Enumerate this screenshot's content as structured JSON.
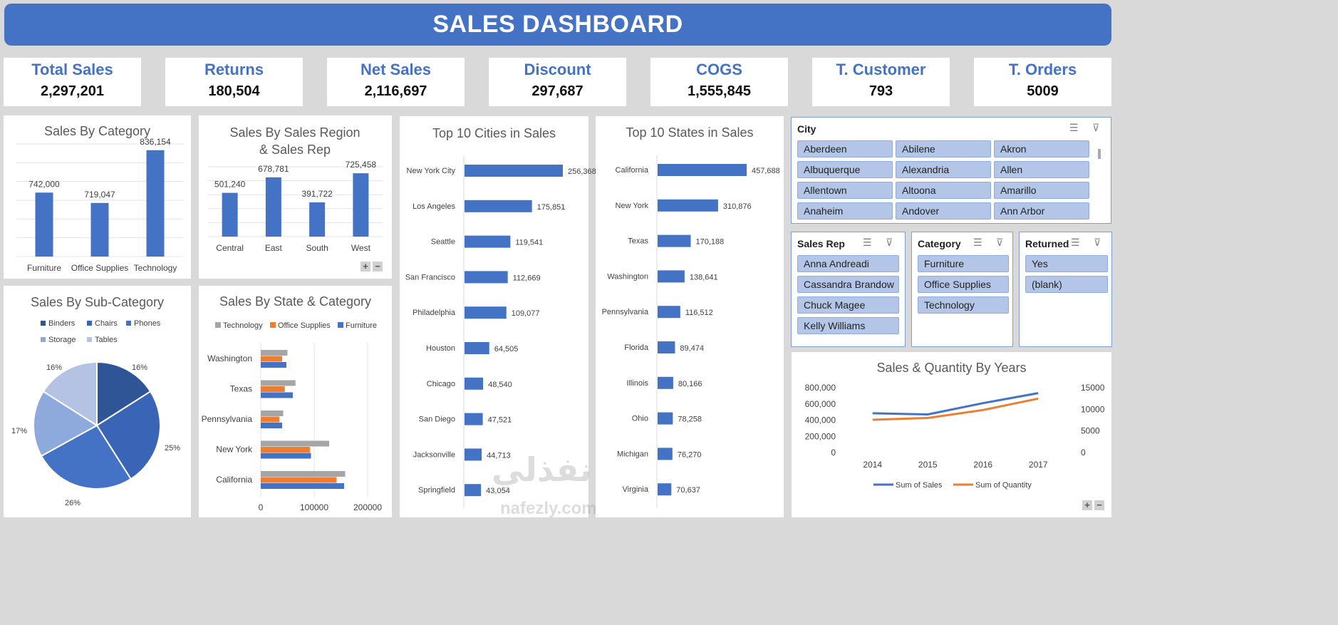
{
  "title": "SALES DASHBOARD",
  "kpis": [
    {
      "label": "Total Sales",
      "value": "2,297,201"
    },
    {
      "label": "Returns",
      "value": "180,504"
    },
    {
      "label": "Net Sales",
      "value": "2,116,697"
    },
    {
      "label": "Discount",
      "value": "297,687"
    },
    {
      "label": "COGS",
      "value": "1,555,845"
    },
    {
      "label": "T. Customer",
      "value": "793"
    },
    {
      "label": "T. Orders",
      "value": "5009"
    }
  ],
  "colors": {
    "primary": "#4472c4",
    "orange": "#ed7d31",
    "gray": "#a5a5a5",
    "slicer_btn": "#b4c6e7"
  },
  "chart_data": [
    {
      "id": "category",
      "type": "bar",
      "title": "Sales By Category",
      "categories": [
        "Furniture",
        "Office Supplies",
        "Technology"
      ],
      "values": [
        742000,
        719047,
        836154
      ],
      "labels": [
        "742,000",
        "719,047",
        "836,154"
      ],
      "ylim": [
        600000,
        850000
      ],
      "grid": true
    },
    {
      "id": "region",
      "type": "bar",
      "title": "Sales By Sales Region & Sales Rep",
      "categories": [
        "Central",
        "East",
        "South",
        "West"
      ],
      "values": [
        501240,
        678781,
        391722,
        725458
      ],
      "labels": [
        "501,240",
        "678,781",
        "391,722",
        "725,458"
      ],
      "grid": true
    },
    {
      "id": "cities",
      "type": "bar",
      "orientation": "horizontal",
      "title": "Top 10 Cities in Sales",
      "categories": [
        "New York City",
        "Los Angeles",
        "Seattle",
        "San Francisco",
        "Philadelphia",
        "Houston",
        "Chicago",
        "San Diego",
        "Jacksonville",
        "Springfield"
      ],
      "values": [
        256368,
        175851,
        119541,
        112669,
        109077,
        64505,
        48540,
        47521,
        44713,
        43054
      ],
      "labels": [
        "256,368",
        "175,851",
        "119,541",
        "112,669",
        "109,077",
        "64,505",
        "48,540",
        "47,521",
        "44,713",
        "43,054"
      ]
    },
    {
      "id": "states",
      "type": "bar",
      "orientation": "horizontal",
      "title": "Top 10 States in Sales",
      "categories": [
        "California",
        "New York",
        "Texas",
        "Washington",
        "Pennsylvania",
        "Florida",
        "Illinois",
        "Ohio",
        "Michigan",
        "Virginia"
      ],
      "values": [
        457688,
        310876,
        170188,
        138641,
        116512,
        89474,
        80166,
        78258,
        76270,
        70637
      ],
      "labels": [
        "457,688",
        "310,876",
        "170,188",
        "138,641",
        "116,512",
        "89,474",
        "80,166",
        "78,258",
        "76,270",
        "70,637"
      ]
    },
    {
      "id": "subcat",
      "type": "pie",
      "title": "Sales By Sub-Category",
      "categories": [
        "Binders",
        "Chairs",
        "Phones",
        "Storage",
        "Tables"
      ],
      "values": [
        16,
        25,
        26,
        17,
        16
      ],
      "labels": [
        "16%",
        "25%",
        "26%",
        "17%",
        "16%"
      ],
      "colors": [
        "#2f5597",
        "#3a64b5",
        "#4472c4",
        "#8ea9db",
        "#b4c2e3"
      ],
      "legend": "top"
    },
    {
      "id": "statecat",
      "type": "bar",
      "orientation": "horizontal",
      "title": "Sales By State & Category",
      "categories": [
        "Washington",
        "Texas",
        "Pennsylvania",
        "New York",
        "California"
      ],
      "series": [
        {
          "name": "Technology",
          "values": [
            50000,
            65000,
            42000,
            128000,
            158000
          ],
          "color": "#a5a5a5"
        },
        {
          "name": "Office Supplies",
          "values": [
            40000,
            45000,
            35000,
            92000,
            142000
          ],
          "color": "#ed7d31"
        },
        {
          "name": "Furniture",
          "values": [
            48000,
            60000,
            40000,
            94000,
            156000
          ],
          "color": "#4472c4"
        }
      ],
      "ticks": [
        "0",
        "100000",
        "200000"
      ],
      "xlim": [
        0,
        200000
      ],
      "legend": "top"
    },
    {
      "id": "years",
      "type": "line",
      "title": "Sales & Quantity By Years",
      "x": [
        "2014",
        "2015",
        "2016",
        "2017"
      ],
      "series": [
        {
          "name": "Sum of Sales",
          "values": [
            484247,
            470533,
            609205,
            733215
          ],
          "color": "#4472c4",
          "axis": "left"
        },
        {
          "name": "Sum of Quantity",
          "values": [
            7581,
            8000,
            9837,
            12476
          ],
          "color": "#ed7d31",
          "axis": "right"
        }
      ],
      "ylim_left": [
        0,
        800000
      ],
      "ylim_right": [
        0,
        15000
      ],
      "left_ticks": [
        "0",
        "200,000",
        "400,000",
        "600,000",
        "800,000"
      ],
      "right_ticks": [
        "0",
        "5000",
        "10000",
        "15000"
      ],
      "legend": "bottom"
    }
  ],
  "slicers": {
    "city": {
      "header": "City",
      "items": [
        "Aberdeen",
        "Abilene",
        "Akron",
        "Albuquerque",
        "Alexandria",
        "Allen",
        "Allentown",
        "Altoona",
        "Amarillo",
        "Anaheim",
        "Andover",
        "Ann Arbor"
      ]
    },
    "rep": {
      "header": "Sales Rep",
      "items": [
        "Anna Andreadi",
        "Cassandra Brandow",
        "Chuck Magee",
        "Kelly Williams"
      ]
    },
    "category": {
      "header": "Category",
      "items": [
        "Furniture",
        "Office Supplies",
        "Technology"
      ]
    },
    "returned": {
      "header": "Returned",
      "items": [
        "Yes",
        "(blank)"
      ]
    }
  },
  "icons": {
    "multiselect": "multiselect-icon",
    "clear_filter": "clear-filter-icon"
  },
  "watermark": {
    "arabic": "نفذلي",
    "latin": "nafezly.com"
  }
}
